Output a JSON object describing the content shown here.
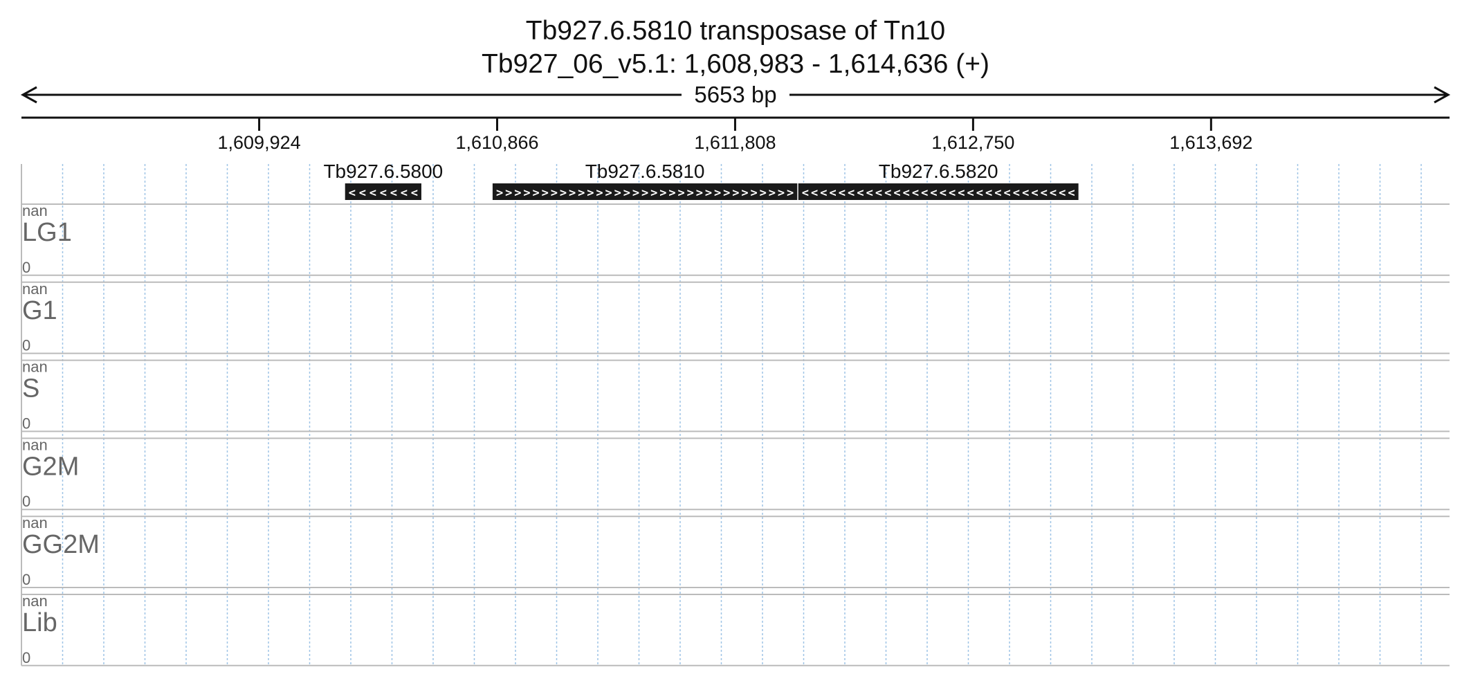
{
  "header": {
    "title": "Tb927.6.5810  transposase of Tn10",
    "location": "Tb927_06_v5.1: 1,608,983 - 1,614,636 (+)"
  },
  "span_label": "5653 bp",
  "region": {
    "start": 1608983,
    "end": 1614636
  },
  "ticks": [
    {
      "pos": 1609924,
      "label": "1,609,924"
    },
    {
      "pos": 1610866,
      "label": "1,610,866"
    },
    {
      "pos": 1611808,
      "label": "1,611,808"
    },
    {
      "pos": 1612750,
      "label": "1,612,750"
    },
    {
      "pos": 1613692,
      "label": "1,613,692"
    }
  ],
  "genes": [
    {
      "name": "Tb927.6.5800",
      "start": 1610264,
      "end": 1610566,
      "strand": "-"
    },
    {
      "name": "Tb927.6.5810",
      "start": 1610848,
      "end": 1612054,
      "strand": "+"
    },
    {
      "name": "Tb927.6.5820",
      "start": 1612058,
      "end": 1613167,
      "strand": "-"
    }
  ],
  "tracks": [
    {
      "name": "LG1",
      "max": "nan",
      "min": "0"
    },
    {
      "name": "G1",
      "max": "nan",
      "min": "0"
    },
    {
      "name": "S",
      "max": "nan",
      "min": "0"
    },
    {
      "name": "G2M",
      "max": "nan",
      "min": "0"
    },
    {
      "name": "GG2M",
      "max": "nan",
      "min": "0"
    },
    {
      "name": "Lib",
      "max": "nan",
      "min": "0"
    }
  ],
  "colors": {
    "axis": "#111111",
    "gene": "#1a1a1a",
    "grid": "#9ec3e6",
    "track_label": "#666666",
    "track_border": "#bbbbbb"
  }
}
